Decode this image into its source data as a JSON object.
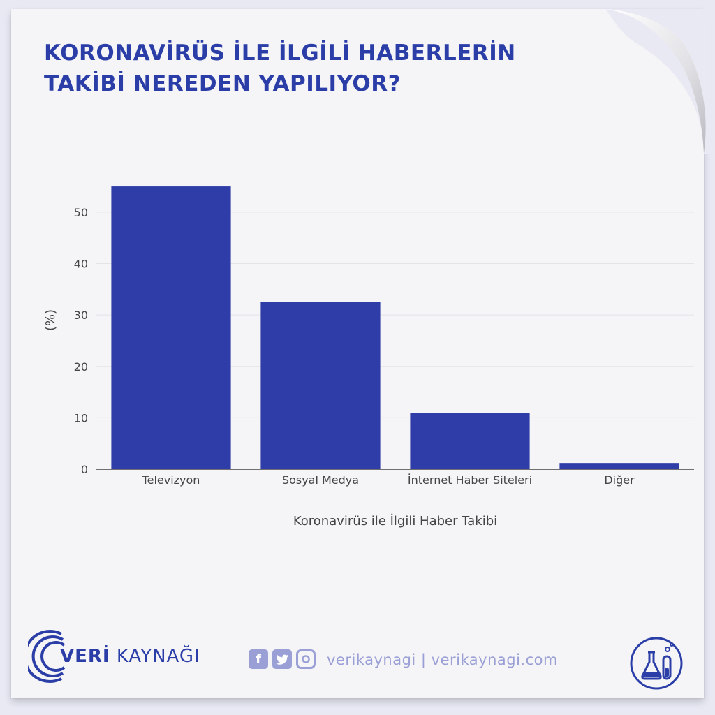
{
  "title_line1": "KORONAVİRÜS İLE İLGİLİ HABERLERİN",
  "title_line2": "TAKİBİ NEREDEN YAPILIYOR?",
  "brand": {
    "part1": "VERİ",
    "part2": "KAYNAĞI"
  },
  "social_handles": "verikaynagi | verikaynagi.com",
  "icons": [
    "facebook-icon",
    "twitter-icon",
    "instagram-icon",
    "lab-flask-icon"
  ],
  "colors": {
    "accent": "#2b3ea8",
    "bar": "#2e3da7",
    "muted": "#9aa0d6"
  },
  "chart_data": {
    "type": "bar",
    "categories": [
      "Televizyon",
      "Sosyal Medya",
      "İnternet Haber Siteleri",
      "Diğer"
    ],
    "values": [
      55,
      32.5,
      11,
      1.2
    ],
    "xlabel": "Koronavirüs ile İlgili Haber Takibi",
    "ylabel": "(%)",
    "ylim": [
      0,
      58
    ],
    "yticks": [
      0,
      10,
      20,
      30,
      40,
      50
    ],
    "grid": true
  }
}
